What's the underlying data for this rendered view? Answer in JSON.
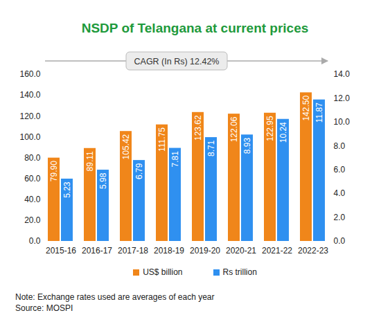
{
  "chart_data": {
    "type": "bar",
    "title": "NSDP of Telangana at current prices",
    "annotation": "CAGR (In Rs) 12.42%",
    "note": "Note: Exchange rates used are averages of each year",
    "source": "Source: MOSPI",
    "categories": [
      "2015-16",
      "2016-17",
      "2017-18",
      "2018-19",
      "2019-20",
      "2020-21",
      "2021-22",
      "2022-23"
    ],
    "series": [
      {
        "name": "US$ billion",
        "color": "#f0861a",
        "values": [
          79.9,
          89.11,
          105.42,
          111.75,
          123.62,
          122.06,
          122.95,
          142.5
        ],
        "value_labels": [
          "79.90",
          "89.11",
          "105.42",
          "111.75",
          "123.62",
          "122.06",
          "122.95",
          "142.50"
        ]
      },
      {
        "name": "Rs trillion",
        "color": "#2f90f0",
        "axis": "y2",
        "values": [
          5.23,
          5.98,
          6.79,
          7.81,
          8.71,
          8.93,
          10.24,
          11.87
        ]
      }
    ],
    "ylim": [
      0,
      160
    ],
    "yticks": [
      {
        "value": 0,
        "label": "0.0"
      },
      {
        "value": 20,
        "label": "20.0"
      },
      {
        "value": 40,
        "label": "40.0"
      },
      {
        "value": 60,
        "label": "60.0"
      },
      {
        "value": 80,
        "label": "80.0"
      },
      {
        "value": 100,
        "label": "100.0"
      },
      {
        "value": 120,
        "label": "120.0"
      },
      {
        "value": 140,
        "label": "140.0"
      },
      {
        "value": 160,
        "label": "160.0"
      }
    ],
    "y2lim": [
      0,
      14
    ],
    "y2ticks": [
      {
        "value": 0,
        "label": "0.0"
      },
      {
        "value": 2,
        "label": "2.0"
      },
      {
        "value": 4,
        "label": "4.0"
      },
      {
        "value": 6,
        "label": "6.0"
      },
      {
        "value": 8,
        "label": "8.0"
      },
      {
        "value": 10,
        "label": "10.0"
      },
      {
        "value": 12,
        "label": "12.0"
      },
      {
        "value": 14,
        "label": "14.0"
      }
    ],
    "grid": false,
    "data_labels": true,
    "legend": "bottom"
  }
}
